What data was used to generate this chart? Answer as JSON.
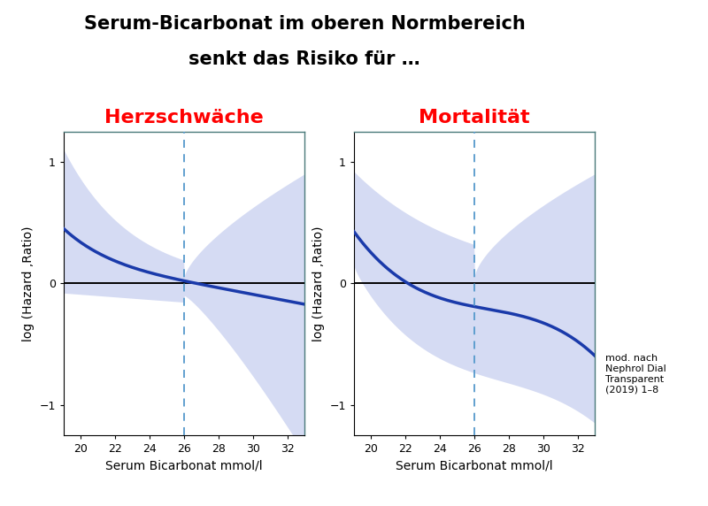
{
  "title_line1": "Serum-Bicarbonat im oberen Normbereich",
  "title_line2": "senkt das Risiko für …",
  "subtitle_left": "Herzschwäche",
  "subtitle_right": "Mortalität",
  "xlabel": "Serum Bicarbonat mmol/l",
  "ylabel": "log (Hazard ,Ratio)",
  "xlim": [
    19,
    33
  ],
  "ylim": [
    -1.25,
    1.25
  ],
  "xticks": [
    20,
    22,
    24,
    26,
    28,
    30,
    32
  ],
  "yticks": [
    -1,
    0,
    1
  ],
  "dashed_x": 26.0,
  "bg_color": "#ffffff",
  "line_color": "#1a3aaa",
  "fill_color": "#8899dd",
  "fill_alpha": 0.35,
  "spine_color": "#4a7a7a",
  "citation": "mod. nach\nNephrol Dial\nTransparent\n(2019) 1–8",
  "title_fontsize": 15,
  "subtitle_fontsize": 16,
  "axis_label_fontsize": 10,
  "tick_fontsize": 9,
  "citation_fontsize": 8
}
